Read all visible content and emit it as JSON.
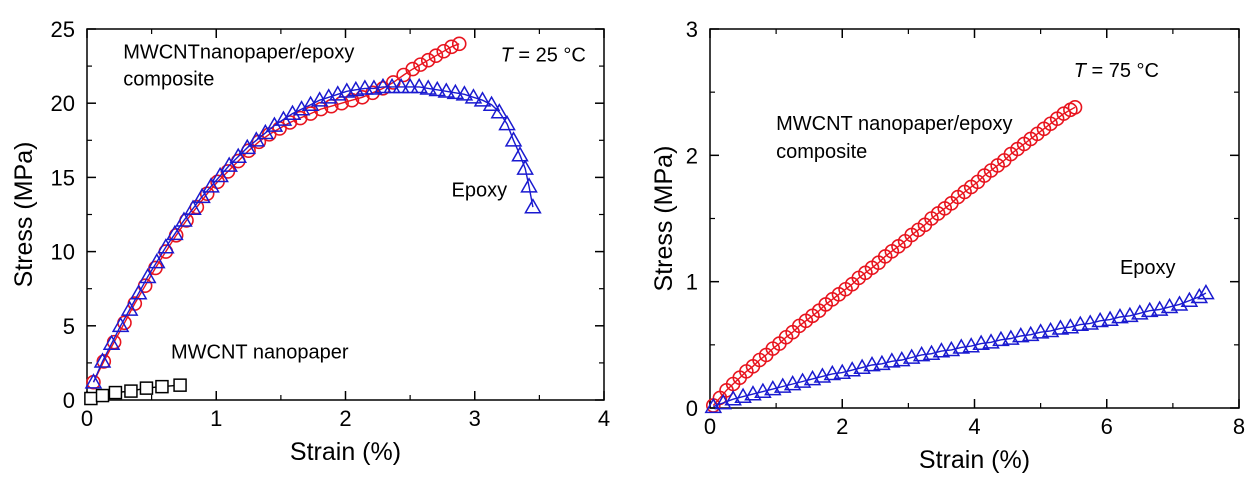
{
  "chart_data": [
    {
      "type": "scatter",
      "title": "",
      "xlabel": "Strain (%)",
      "ylabel": "Stress (MPa)",
      "xlim": [
        0,
        4
      ],
      "ylim": [
        0,
        25
      ],
      "xticks": [
        "0",
        "1",
        "2",
        "3",
        "4"
      ],
      "yticks": [
        "0",
        "5",
        "10",
        "15",
        "20",
        "25"
      ],
      "grid": false,
      "annotations": [
        {
          "text": "MWCNTnanopaper/epoxy",
          "x": 0.28,
          "y": 23.0
        },
        {
          "text": "composite",
          "x": 0.28,
          "y": 21.2
        },
        {
          "text_italic": "T",
          "text": " = 25 °C",
          "x": 3.2,
          "y": 22.8
        },
        {
          "text": "Epoxy",
          "x": 2.82,
          "y": 13.7
        },
        {
          "text": "MWCNT nanopaper",
          "x": 0.65,
          "y": 2.8
        }
      ],
      "series": [
        {
          "marker": "circle",
          "color": "#e8141e",
          "x": [
            0.05,
            0.13,
            0.21,
            0.29,
            0.37,
            0.45,
            0.53,
            0.61,
            0.69,
            0.77,
            0.85,
            0.93,
            1.01,
            1.09,
            1.17,
            1.25,
            1.33,
            1.41,
            1.49,
            1.57,
            1.65,
            1.73,
            1.81,
            1.89,
            1.97,
            2.05,
            2.13,
            2.21,
            2.29,
            2.37,
            2.45,
            2.52,
            2.58,
            2.64,
            2.7,
            2.76,
            2.82,
            2.88
          ],
          "y": [
            1.2,
            2.6,
            3.9,
            5.2,
            6.5,
            7.7,
            8.9,
            10.0,
            11.1,
            12.1,
            13.0,
            13.9,
            14.7,
            15.4,
            16.1,
            16.8,
            17.4,
            17.9,
            18.3,
            18.7,
            19.0,
            19.3,
            19.6,
            19.8,
            20.0,
            20.2,
            20.4,
            20.7,
            21.0,
            21.4,
            21.9,
            22.3,
            22.6,
            22.9,
            23.2,
            23.5,
            23.8,
            24.0
          ]
        },
        {
          "marker": "triangle",
          "color": "#1a1ad0",
          "x": [
            0.05,
            0.12,
            0.19,
            0.26,
            0.33,
            0.4,
            0.47,
            0.54,
            0.61,
            0.68,
            0.75,
            0.82,
            0.89,
            0.96,
            1.03,
            1.1,
            1.17,
            1.24,
            1.31,
            1.38,
            1.45,
            1.52,
            1.59,
            1.66,
            1.73,
            1.8,
            1.87,
            1.94,
            2.01,
            2.08,
            2.15,
            2.22,
            2.29,
            2.36,
            2.43,
            2.5,
            2.57,
            2.64,
            2.71,
            2.78,
            2.85,
            2.92,
            2.99,
            3.06,
            3.13,
            3.19,
            3.25,
            3.3,
            3.35,
            3.39,
            3.42,
            3.45
          ],
          "y": [
            1.2,
            2.6,
            3.8,
            5.0,
            6.1,
            7.2,
            8.3,
            9.3,
            10.3,
            11.2,
            12.1,
            12.9,
            13.7,
            14.4,
            15.1,
            15.8,
            16.4,
            17.0,
            17.5,
            18.0,
            18.5,
            18.9,
            19.3,
            19.6,
            19.9,
            20.2,
            20.4,
            20.6,
            20.8,
            20.9,
            21.0,
            21.0,
            21.1,
            21.1,
            21.1,
            21.1,
            21.1,
            21.0,
            20.9,
            20.8,
            20.7,
            20.6,
            20.4,
            20.2,
            19.9,
            19.4,
            18.6,
            17.5,
            16.5,
            15.6,
            14.4,
            13.0
          ]
        },
        {
          "marker": "square",
          "color": "#000000",
          "x": [
            0.03,
            0.12,
            0.22,
            0.34,
            0.46,
            0.58,
            0.72
          ],
          "y": [
            0.1,
            0.3,
            0.5,
            0.6,
            0.8,
            0.9,
            1.0
          ]
        }
      ]
    },
    {
      "type": "scatter",
      "title": "",
      "xlabel": "Strain (%)",
      "ylabel": "Stress (MPa)",
      "xlim": [
        0,
        8
      ],
      "ylim": [
        0,
        3
      ],
      "xticks": [
        "0",
        "2",
        "4",
        "6",
        "8"
      ],
      "yticks": [
        "0",
        "1",
        "2",
        "3"
      ],
      "grid": false,
      "annotations": [
        {
          "text_italic": "T",
          "text": " = 75 °C",
          "x": 5.5,
          "y": 2.62
        },
        {
          "text": "MWCNT nanopaper/epoxy",
          "x": 1.0,
          "y": 2.2
        },
        {
          "text": "composite",
          "x": 1.0,
          "y": 1.98
        },
        {
          "text": "Epoxy",
          "x": 6.2,
          "y": 1.06
        }
      ],
      "series": [
        {
          "marker": "circle",
          "color": "#e8141e",
          "x": [
            0.05,
            0.15,
            0.25,
            0.35,
            0.45,
            0.55,
            0.65,
            0.75,
            0.85,
            0.95,
            1.05,
            1.15,
            1.25,
            1.35,
            1.45,
            1.55,
            1.65,
            1.75,
            1.85,
            1.95,
            2.05,
            2.15,
            2.25,
            2.35,
            2.45,
            2.55,
            2.65,
            2.75,
            2.85,
            2.95,
            3.05,
            3.15,
            3.25,
            3.35,
            3.45,
            3.55,
            3.65,
            3.75,
            3.85,
            3.95,
            4.05,
            4.15,
            4.25,
            4.35,
            4.45,
            4.55,
            4.65,
            4.75,
            4.85,
            4.95,
            5.05,
            5.15,
            5.25,
            5.35,
            5.45,
            5.52
          ],
          "y": [
            0.02,
            0.08,
            0.14,
            0.19,
            0.24,
            0.29,
            0.33,
            0.38,
            0.42,
            0.47,
            0.51,
            0.56,
            0.6,
            0.65,
            0.69,
            0.73,
            0.77,
            0.82,
            0.86,
            0.9,
            0.94,
            0.98,
            1.03,
            1.07,
            1.11,
            1.15,
            1.2,
            1.24,
            1.28,
            1.32,
            1.37,
            1.41,
            1.45,
            1.5,
            1.54,
            1.58,
            1.62,
            1.67,
            1.71,
            1.75,
            1.79,
            1.84,
            1.88,
            1.92,
            1.96,
            2.01,
            2.05,
            2.09,
            2.13,
            2.17,
            2.21,
            2.25,
            2.29,
            2.33,
            2.36,
            2.38
          ]
        },
        {
          "marker": "triangle",
          "color": "#1a1ad0",
          "x": [
            0.05,
            0.2,
            0.35,
            0.5,
            0.65,
            0.8,
            0.95,
            1.1,
            1.25,
            1.4,
            1.55,
            1.7,
            1.85,
            2.0,
            2.15,
            2.3,
            2.45,
            2.6,
            2.75,
            2.9,
            3.05,
            3.2,
            3.35,
            3.5,
            3.65,
            3.8,
            3.95,
            4.1,
            4.25,
            4.4,
            4.55,
            4.7,
            4.85,
            5.0,
            5.15,
            5.3,
            5.45,
            5.6,
            5.75,
            5.9,
            6.05,
            6.2,
            6.35,
            6.5,
            6.65,
            6.8,
            6.95,
            7.1,
            7.25,
            7.4,
            7.5
          ],
          "y": [
            0.01,
            0.04,
            0.07,
            0.09,
            0.11,
            0.13,
            0.15,
            0.17,
            0.19,
            0.21,
            0.23,
            0.25,
            0.27,
            0.28,
            0.3,
            0.32,
            0.34,
            0.35,
            0.37,
            0.38,
            0.4,
            0.42,
            0.43,
            0.45,
            0.46,
            0.48,
            0.49,
            0.51,
            0.52,
            0.54,
            0.55,
            0.57,
            0.58,
            0.6,
            0.61,
            0.63,
            0.64,
            0.66,
            0.67,
            0.69,
            0.7,
            0.72,
            0.73,
            0.75,
            0.77,
            0.78,
            0.8,
            0.82,
            0.85,
            0.88,
            0.91
          ]
        }
      ]
    }
  ]
}
